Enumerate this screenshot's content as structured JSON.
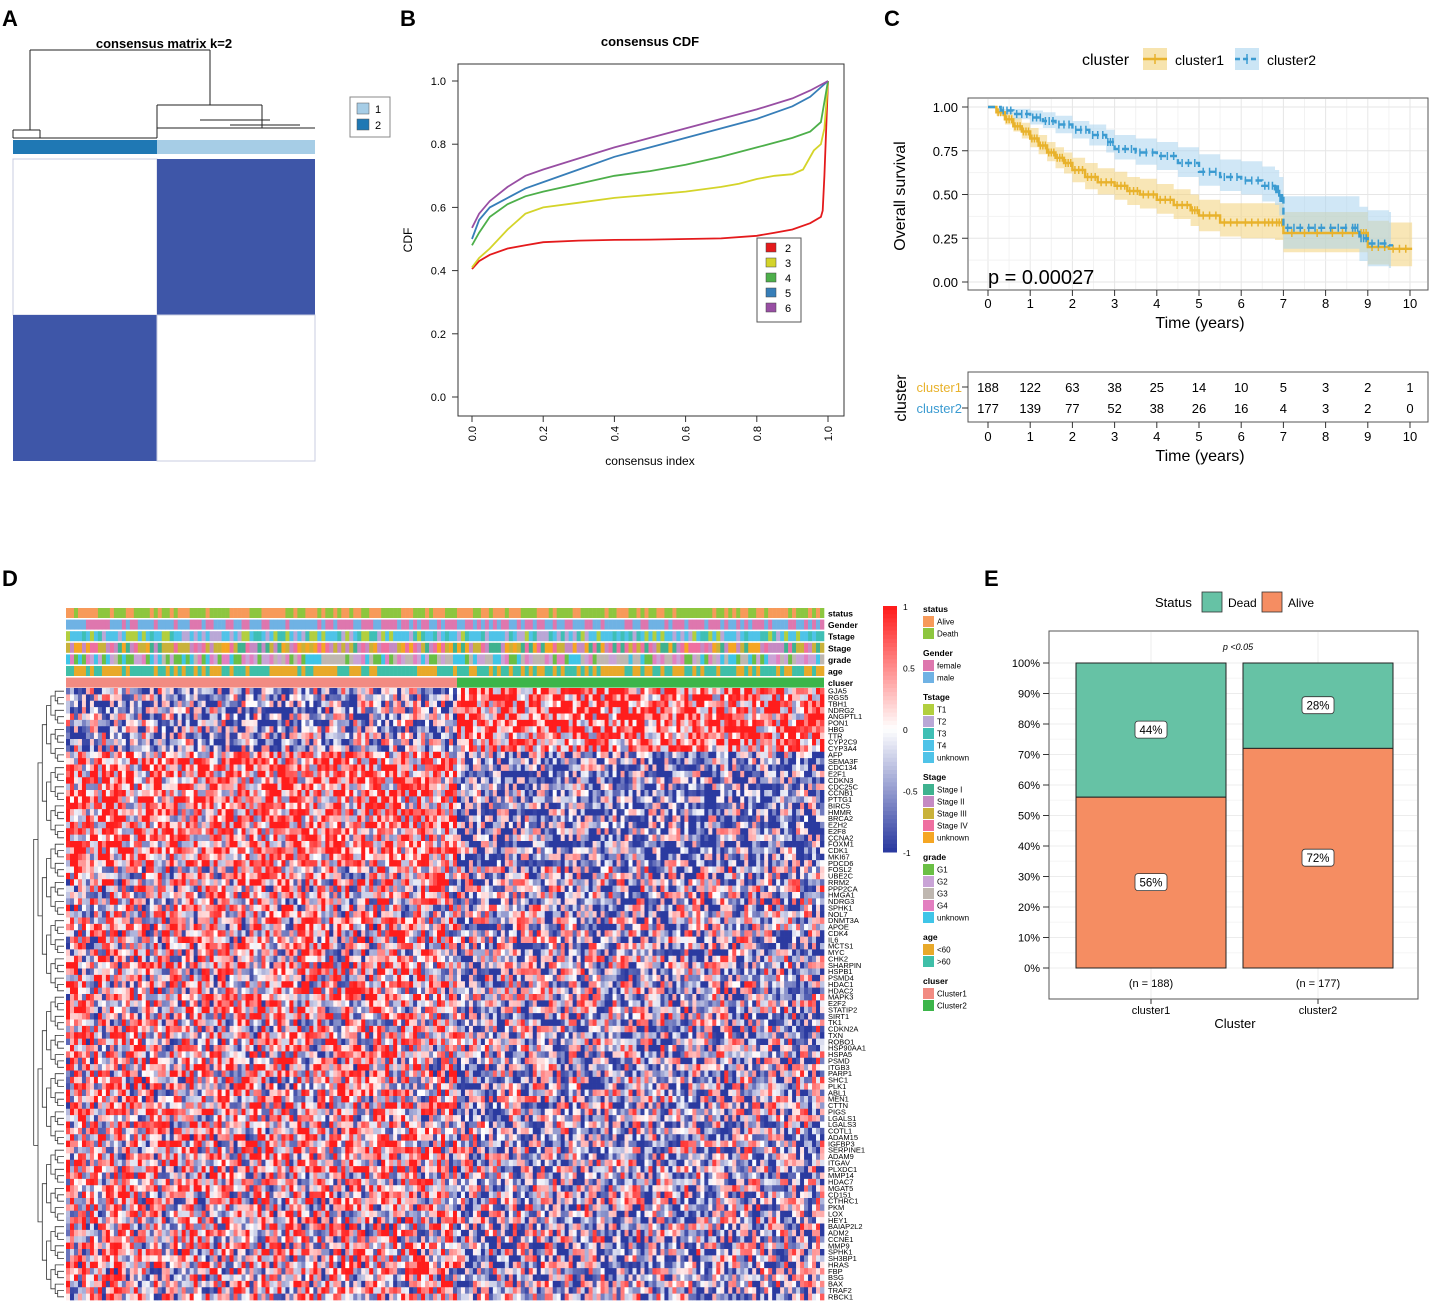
{
  "panels": {
    "A": "A",
    "B": "B",
    "C": "C",
    "D": "D",
    "E": "E"
  },
  "chart_data": [
    {
      "id": "consensus-matrix",
      "type": "heatmap",
      "title": "consensus matrix k=2",
      "legend": {
        "entries": [
          "1",
          "2"
        ],
        "colors": [
          "#a6cde6",
          "#1f78b4"
        ],
        "placement": "top-right"
      },
      "blocks": [
        {
          "row": "top",
          "col": "left",
          "value": 0
        },
        {
          "row": "top",
          "col": "right",
          "value": 1
        },
        {
          "row": "bottom",
          "col": "left",
          "value": 1
        },
        {
          "row": "bottom",
          "col": "right",
          "value": 0
        }
      ],
      "cluster_fraction_left": 0.48,
      "fill_color": "#3e56a8"
    },
    {
      "id": "consensus-cdf",
      "type": "line",
      "title": "consensus CDF",
      "xlabel": "consensus index",
      "ylabel": "CDF",
      "xlim": [
        0,
        1
      ],
      "ylim": [
        0,
        1
      ],
      "xticks": [
        "0.0",
        "0.2",
        "0.4",
        "0.6",
        "0.8",
        "1.0"
      ],
      "yticks": [
        "0.0",
        "0.2",
        "0.4",
        "0.6",
        "0.8",
        "1.0"
      ],
      "legend_placement": "bottom-right",
      "series": [
        {
          "name": "2",
          "color": "#e41a1c",
          "x": [
            0,
            0.02,
            0.05,
            0.1,
            0.15,
            0.2,
            0.3,
            0.4,
            0.5,
            0.6,
            0.7,
            0.8,
            0.85,
            0.9,
            0.95,
            0.98,
            0.985,
            0.99,
            1.0
          ],
          "y": [
            0.405,
            0.43,
            0.45,
            0.47,
            0.48,
            0.49,
            0.495,
            0.497,
            0.498,
            0.5,
            0.502,
            0.51,
            0.52,
            0.53,
            0.55,
            0.57,
            0.59,
            0.7,
            1.0
          ]
        },
        {
          "name": "3",
          "color": "#d4d42a",
          "x": [
            0,
            0.02,
            0.05,
            0.1,
            0.15,
            0.2,
            0.3,
            0.4,
            0.5,
            0.6,
            0.7,
            0.75,
            0.8,
            0.85,
            0.9,
            0.93,
            0.96,
            0.98,
            0.99,
            1.0
          ],
          "y": [
            0.41,
            0.44,
            0.47,
            0.53,
            0.58,
            0.6,
            0.615,
            0.63,
            0.64,
            0.65,
            0.665,
            0.675,
            0.69,
            0.7,
            0.705,
            0.72,
            0.78,
            0.8,
            0.85,
            1.0
          ]
        },
        {
          "name": "4",
          "color": "#4daf4a",
          "x": [
            0,
            0.02,
            0.05,
            0.1,
            0.15,
            0.2,
            0.3,
            0.4,
            0.5,
            0.6,
            0.7,
            0.8,
            0.9,
            0.95,
            0.98,
            1.0
          ],
          "y": [
            0.48,
            0.52,
            0.57,
            0.61,
            0.635,
            0.65,
            0.675,
            0.7,
            0.715,
            0.735,
            0.76,
            0.79,
            0.82,
            0.84,
            0.87,
            1.0
          ]
        },
        {
          "name": "5",
          "color": "#377eb8",
          "x": [
            0,
            0.02,
            0.05,
            0.1,
            0.15,
            0.2,
            0.3,
            0.4,
            0.5,
            0.6,
            0.7,
            0.8,
            0.9,
            0.95,
            1.0
          ],
          "y": [
            0.5,
            0.56,
            0.6,
            0.63,
            0.66,
            0.68,
            0.72,
            0.76,
            0.79,
            0.82,
            0.85,
            0.88,
            0.92,
            0.95,
            1.0
          ]
        },
        {
          "name": "6",
          "color": "#984ea3",
          "x": [
            0,
            0.02,
            0.05,
            0.1,
            0.15,
            0.2,
            0.3,
            0.4,
            0.5,
            0.6,
            0.7,
            0.8,
            0.9,
            0.95,
            1.0
          ],
          "y": [
            0.535,
            0.58,
            0.62,
            0.665,
            0.7,
            0.72,
            0.755,
            0.79,
            0.82,
            0.85,
            0.88,
            0.91,
            0.945,
            0.97,
            1.0
          ]
        }
      ]
    },
    {
      "id": "km-survival",
      "type": "line",
      "xlabel": "Time (years)",
      "ylabel": "Overall survival",
      "xlim": [
        0,
        10
      ],
      "ylim": [
        0,
        1
      ],
      "xticks": [
        "0",
        "1",
        "2",
        "3",
        "4",
        "5",
        "6",
        "7",
        "8",
        "9",
        "10"
      ],
      "yticks": [
        "0.00",
        "0.25",
        "0.50",
        "0.75",
        "1.00"
      ],
      "legend_title": "cluster",
      "annotation": "p = 0.00027",
      "series": [
        {
          "name": "cluster1",
          "color": "#e8b22c",
          "ci_color": "#f2d27a",
          "x": [
            0,
            0.2,
            0.4,
            0.6,
            0.8,
            1.0,
            1.2,
            1.4,
            1.6,
            1.8,
            2.0,
            2.3,
            2.6,
            3.0,
            3.3,
            3.6,
            4.0,
            4.4,
            4.8,
            5.0,
            5.5,
            6.0,
            6.5,
            6.8,
            7.0,
            8.0,
            8.8,
            9.0,
            9.5,
            10.0
          ],
          "y": [
            1.0,
            0.97,
            0.93,
            0.89,
            0.86,
            0.82,
            0.78,
            0.74,
            0.71,
            0.68,
            0.64,
            0.6,
            0.57,
            0.55,
            0.52,
            0.5,
            0.47,
            0.44,
            0.41,
            0.38,
            0.34,
            0.34,
            0.34,
            0.34,
            0.28,
            0.28,
            0.28,
            0.2,
            0.19,
            0.19
          ],
          "lower": [
            1.0,
            0.95,
            0.9,
            0.86,
            0.82,
            0.77,
            0.73,
            0.69,
            0.65,
            0.62,
            0.57,
            0.53,
            0.5,
            0.47,
            0.44,
            0.42,
            0.39,
            0.36,
            0.32,
            0.29,
            0.26,
            0.25,
            0.25,
            0.24,
            0.17,
            0.17,
            0.17,
            0.1,
            0.09,
            0.09
          ],
          "upper": [
            1.0,
            0.99,
            0.97,
            0.94,
            0.91,
            0.88,
            0.84,
            0.8,
            0.77,
            0.74,
            0.71,
            0.68,
            0.65,
            0.63,
            0.6,
            0.59,
            0.56,
            0.53,
            0.5,
            0.47,
            0.45,
            0.45,
            0.45,
            0.45,
            0.4,
            0.4,
            0.4,
            0.35,
            0.34,
            0.34
          ]
        },
        {
          "name": "cluster2",
          "color": "#3b9bd1",
          "ci_color": "#a9d3ee",
          "x": [
            0,
            0.3,
            0.6,
            1.0,
            1.3,
            1.6,
            2.0,
            2.4,
            2.8,
            3.0,
            3.5,
            4.0,
            4.5,
            5.0,
            5.5,
            6.0,
            6.5,
            6.8,
            6.9,
            7.0,
            7.5,
            8.0,
            8.6,
            8.8,
            9.0,
            9.5
          ],
          "y": [
            1.0,
            0.98,
            0.96,
            0.94,
            0.92,
            0.9,
            0.87,
            0.84,
            0.8,
            0.76,
            0.74,
            0.72,
            0.68,
            0.63,
            0.6,
            0.58,
            0.55,
            0.53,
            0.48,
            0.31,
            0.31,
            0.31,
            0.31,
            0.25,
            0.22,
            0.21
          ],
          "lower": [
            1.0,
            0.96,
            0.93,
            0.9,
            0.88,
            0.85,
            0.82,
            0.78,
            0.74,
            0.7,
            0.67,
            0.64,
            0.6,
            0.55,
            0.52,
            0.5,
            0.46,
            0.44,
            0.38,
            0.19,
            0.19,
            0.19,
            0.19,
            0.12,
            0.09,
            0.08
          ],
          "upper": [
            1.0,
            0.99,
            0.99,
            0.98,
            0.97,
            0.95,
            0.92,
            0.9,
            0.87,
            0.84,
            0.82,
            0.8,
            0.77,
            0.73,
            0.7,
            0.69,
            0.66,
            0.64,
            0.6,
            0.49,
            0.49,
            0.49,
            0.49,
            0.43,
            0.41,
            0.4
          ]
        }
      ]
    },
    {
      "id": "risk-table",
      "type": "table",
      "ylabel": "cluster",
      "xlabel": "Time (years)",
      "columns": [
        "0",
        "1",
        "2",
        "3",
        "4",
        "5",
        "6",
        "7",
        "8",
        "9",
        "10"
      ],
      "rows": [
        {
          "name": "cluster1",
          "color": "#e8b22c",
          "values": [
            "188",
            "122",
            "63",
            "38",
            "25",
            "14",
            "10",
            "5",
            "3",
            "2",
            "1"
          ]
        },
        {
          "name": "cluster2",
          "color": "#3b9bd1",
          "values": [
            "177",
            "139",
            "77",
            "52",
            "38",
            "26",
            "16",
            "4",
            "3",
            "2",
            "0"
          ]
        }
      ]
    },
    {
      "id": "expression-heatmap",
      "type": "heatmap",
      "annotation_tracks": [
        "status",
        "Gender",
        "Tstage",
        "Stage",
        "grade",
        "age",
        "cluser"
      ],
      "colorbar": {
        "ticks": [
          "1",
          "0.5",
          "0",
          "-0.5",
          "-1"
        ],
        "high": "#e41a1c",
        "mid": "#ffffff",
        "low": "#2b3aa0"
      },
      "legends": [
        {
          "title": "status",
          "entries": [
            {
              "label": "Alive",
              "color": "#f79a5a"
            },
            {
              "label": "Death",
              "color": "#8dc63f"
            }
          ]
        },
        {
          "title": "Gender",
          "entries": [
            {
              "label": "female",
              "color": "#de77ae"
            },
            {
              "label": "male",
              "color": "#6fb2e4"
            }
          ]
        },
        {
          "title": "Tstage",
          "entries": [
            {
              "label": "T1",
              "color": "#b2cf3f"
            },
            {
              "label": "T2",
              "color": "#b9a7d6"
            },
            {
              "label": "T3",
              "color": "#3fbfb5"
            },
            {
              "label": "T4",
              "color": "#4fc3e8"
            },
            {
              "label": "unknown",
              "color": "#4fc3e8"
            }
          ]
        },
        {
          "title": "Stage",
          "entries": [
            {
              "label": "Stage I",
              "color": "#3fb28f"
            },
            {
              "label": "Stage II",
              "color": "#c58ac3"
            },
            {
              "label": "Stage III",
              "color": "#c9b23a"
            },
            {
              "label": "Stage IV",
              "color": "#ef6fa0"
            },
            {
              "label": "unknown",
              "color": "#f5a623"
            }
          ]
        },
        {
          "title": "grade",
          "entries": [
            {
              "label": "G1",
              "color": "#6abf45"
            },
            {
              "label": "G2",
              "color": "#c9a3d6"
            },
            {
              "label": "G3",
              "color": "#bfb7b0"
            },
            {
              "label": "G4",
              "color": "#e37fc0"
            },
            {
              "label": "unknown",
              "color": "#3fc5e8"
            }
          ]
        },
        {
          "title": "age",
          "entries": [
            {
              "label": "<60",
              "color": "#e8a92a"
            },
            {
              "label": ">60",
              "color": "#3fbfa8"
            }
          ]
        },
        {
          "title": "cluser",
          "entries": [
            {
              "label": "Cluster1",
              "color": "#f28b82"
            },
            {
              "label": "Cluster2",
              "color": "#3cb54a"
            }
          ]
        }
      ],
      "genes": [
        "GJA5",
        "RGS5",
        "TBH1",
        "NDRG2",
        "ANGPTL1",
        "PON1",
        "HBG",
        "TTR",
        "CYP2C9",
        "CYP3A4",
        "AFP",
        "SEMA3F",
        "CDC134",
        "E2F1",
        "CDKN3",
        "CDC25C",
        "CCNB1",
        "PTTG1",
        "BIRC5",
        "HMMR",
        "BRCA2",
        "EZH2",
        "E2F8",
        "CCNA2",
        "FOXM1",
        "CDK1",
        "MKI67",
        "PDCD6",
        "FOSL2",
        "UBE2C",
        "RRM2",
        "PPP2CA",
        "HMGA1",
        "NDRG3",
        "SPHK1",
        "NOL7",
        "DNMT3A",
        "APOE",
        "CDK4",
        "IL6",
        "MCTS1",
        "MYC",
        "CHK2",
        "SHARPIN",
        "HSPB1",
        "PSMD4",
        "HDAC1",
        "HDAC2",
        "MAPK3",
        "E2F2",
        "STATIP2",
        "SIRT1",
        "TK1",
        "CDKN2A",
        "TXN",
        "ROBO1",
        "HSP90AA1",
        "HSPA5",
        "PSMD",
        "ITGB3",
        "PARP1",
        "SHC1",
        "PLK1",
        "ABL1",
        "MEN1",
        "CTTN",
        "PIGS",
        "LGALS1",
        "LGALS3",
        "COTL1",
        "ADAM15",
        "IGFBP3",
        "SERPINE1",
        "ADAM9",
        "ITGAV",
        "PLXDC1",
        "MMP14",
        "HDAC7",
        "MGAT5",
        "CD151",
        "CTHRC1",
        "PKM",
        "LOX",
        "HEY1",
        "BAIAP2L2",
        "ADM2",
        "CCNE1",
        "MMP9",
        "SPHK1",
        "SH3BP1",
        "HRAS",
        "FBP",
        "BSG",
        "BAX",
        "TRAF2",
        "RBCK1"
      ]
    },
    {
      "id": "status-stacked-bar",
      "type": "bar",
      "stacked": true,
      "legend_title": "Status",
      "xlabel": "Cluster",
      "ylabel": "",
      "annotation": "p <0.05",
      "categories": [
        "cluster1",
        "cluster2"
      ],
      "counts": [
        "(n = 188)",
        "(n = 177)"
      ],
      "yticks": [
        "0%",
        "10%",
        "20%",
        "30%",
        "40%",
        "50%",
        "60%",
        "70%",
        "80%",
        "90%",
        "100%"
      ],
      "series": [
        {
          "name": "Dead",
          "color": "#66c2a5",
          "values": [
            44,
            28
          ],
          "labels": [
            "44%",
            "28%"
          ]
        },
        {
          "name": "Alive",
          "color": "#f58d62",
          "values": [
            56,
            72
          ],
          "labels": [
            "56%",
            "72%"
          ]
        }
      ]
    }
  ]
}
